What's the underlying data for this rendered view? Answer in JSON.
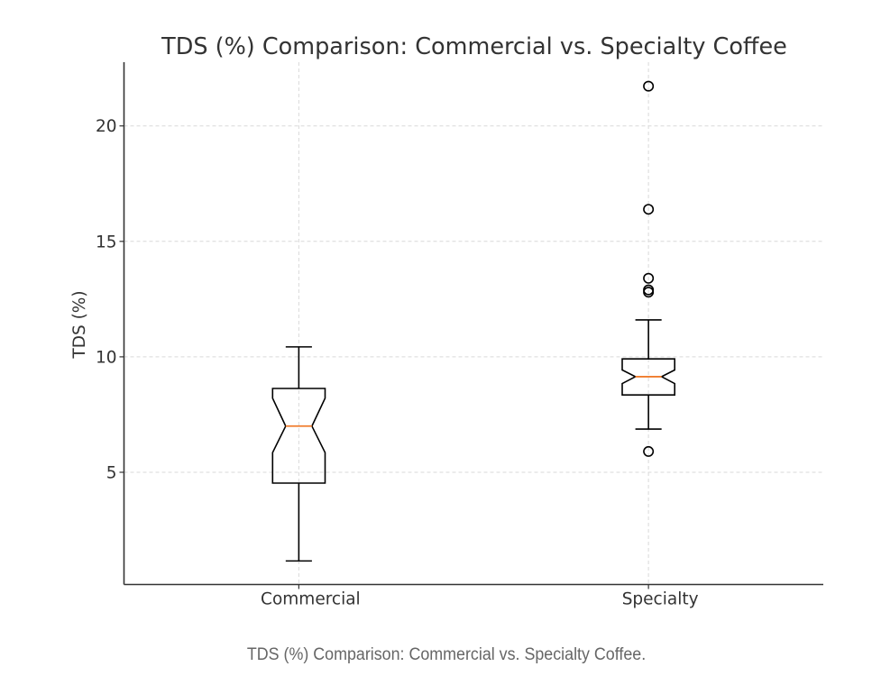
{
  "chart_data": {
    "type": "boxplot",
    "title": "TDS (%) Comparison: Commercial vs. Specialty Coffee",
    "xlabel": "",
    "ylabel": "TDS (%)",
    "ylim": [
      0.14,
      22.76
    ],
    "xlim": [
      0.5,
      2.5
    ],
    "yticks": [
      5,
      10,
      15,
      20
    ],
    "ytick_labels": [
      "5",
      "10",
      "15",
      "20"
    ],
    "grid": true,
    "notched": true,
    "categories": [
      "Commercial",
      "Specialty"
    ],
    "series": [
      {
        "name": "Commercial",
        "whisker_low": 1.16,
        "q1": 4.53,
        "median": 7.0,
        "q3": 8.63,
        "whisker_high": 10.43,
        "notch_low": 5.85,
        "notch_high": 8.21,
        "outliers": []
      },
      {
        "name": "Specialty",
        "whisker_low": 6.87,
        "q1": 8.35,
        "median": 9.14,
        "q3": 9.91,
        "whisker_high": 11.6,
        "notch_low": 8.84,
        "notch_high": 9.43,
        "outliers": [
          5.9,
          12.8,
          12.9,
          13.4,
          16.39,
          21.72
        ]
      }
    ],
    "colors": {
      "box": "#000000",
      "median": "#f07c2c",
      "grid": "#d9d9d9",
      "axis": "#333333",
      "text": "#333333"
    }
  },
  "caption": "TDS (%) Comparison: Commercial vs. Specialty Coffee."
}
